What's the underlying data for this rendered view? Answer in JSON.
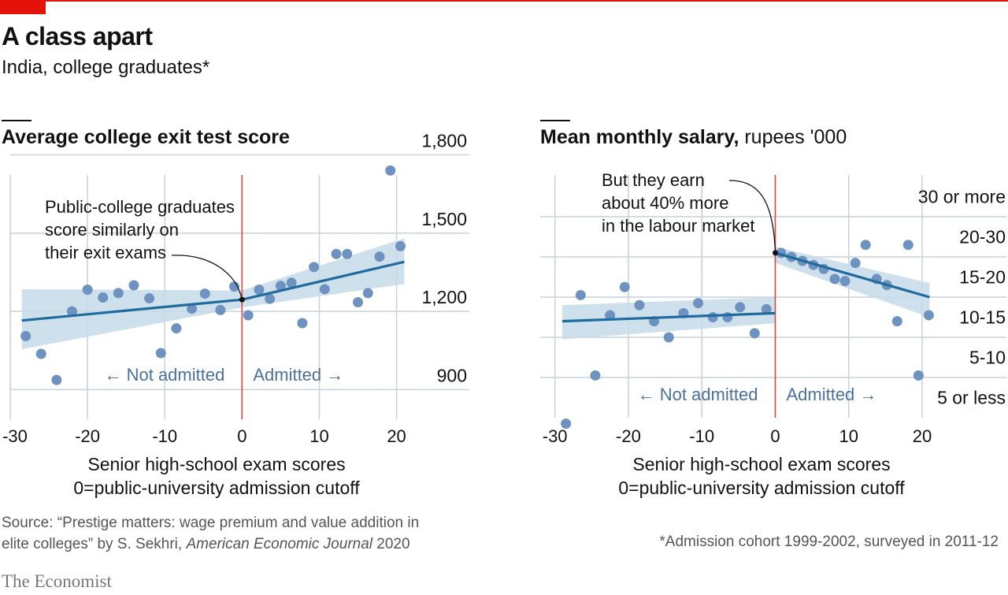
{
  "header": {
    "title": "A class apart",
    "subtitle": "India, college graduates*"
  },
  "colors": {
    "accent": "#e3120b",
    "line": "#1f6b9e",
    "band": "#c5dbe8",
    "dots": "#6f93c0",
    "grid": "#c7d2db",
    "cutoff": "#d64541"
  },
  "chart_data": [
    {
      "type": "scatter",
      "title": "Average college exit test score",
      "ylabel": "",
      "xlabel": "Senior high-school exam scores",
      "xlabel_sub": "0=public-university admission cutoff",
      "xlim": [
        -30,
        23
      ],
      "ylim": [
        750,
        1850
      ],
      "x_ticks": [
        -30,
        -20,
        -10,
        0,
        10,
        20
      ],
      "x_tick_labels": [
        "-30",
        "-20",
        "-10",
        "0",
        "10",
        "20"
      ],
      "y_ticks": [
        900,
        1200,
        1500,
        1800
      ],
      "y_tick_labels": [
        "900",
        "1,200",
        "1,500",
        "1,800"
      ],
      "cutoff_x": 0,
      "annotation": "Public-college graduates score similarly on their exit exams",
      "annotation_lines": [
        "Public-college graduates",
        "score similarly on",
        "their exit exams"
      ],
      "left_label": "← Not admitted",
      "right_label": "Admitted →",
      "points": [
        [
          -28,
          1105
        ],
        [
          -26,
          1037
        ],
        [
          -24,
          937
        ],
        [
          -22,
          1200
        ],
        [
          -20,
          1283
        ],
        [
          -18,
          1253
        ],
        [
          -16,
          1270
        ],
        [
          -14,
          1300
        ],
        [
          -12,
          1250
        ],
        [
          -10.5,
          1040
        ],
        [
          -8.5,
          1135
        ],
        [
          -6.5,
          1210
        ],
        [
          -4.8,
          1268
        ],
        [
          -2.8,
          1205
        ],
        [
          -1,
          1295
        ],
        [
          0.8,
          1185
        ],
        [
          2.2,
          1283
        ],
        [
          3.6,
          1248
        ],
        [
          5,
          1298
        ],
        [
          6.4,
          1310
        ],
        [
          7.8,
          1155
        ],
        [
          9.3,
          1370
        ],
        [
          10.7,
          1285
        ],
        [
          12.2,
          1420
        ],
        [
          13.6,
          1420
        ],
        [
          15,
          1235
        ],
        [
          16.3,
          1270
        ],
        [
          17.8,
          1410
        ],
        [
          19.2,
          1740
        ],
        [
          20.5,
          1450
        ]
      ],
      "fit_left": {
        "x": [
          -28.5,
          0
        ],
        "y": [
          1165,
          1245
        ]
      },
      "fit_right": {
        "x": [
          0,
          21
        ],
        "y": [
          1245,
          1390
        ]
      },
      "band_left": {
        "x": [
          -28.5,
          0
        ],
        "upper": [
          1285,
          1280
        ],
        "lower": [
          1055,
          1215
        ]
      },
      "band_right": {
        "x": [
          0,
          21
        ],
        "upper": [
          1280,
          1480
        ],
        "lower": [
          1215,
          1305
        ]
      }
    },
    {
      "type": "scatter",
      "title": "Mean monthly salary,",
      "unit": "rupees '000",
      "xlabel": "Senior high-school exam scores",
      "xlabel_sub": "0=public-university admission cutoff",
      "xlim": [
        -32,
        23
      ],
      "ylim": [
        0,
        6
      ],
      "x_ticks": [
        -30,
        -20,
        -10,
        0,
        10,
        20
      ],
      "x_tick_labels": [
        "-30",
        "-20",
        "-10",
        "0",
        "10",
        "20"
      ],
      "bands": [
        "5 or less",
        "5-10",
        "10-15",
        "15-20",
        "20-30",
        "30 or more"
      ],
      "cutoff_x": 0,
      "annotation": "But they earn about 40% more in the labour market",
      "annotation_lines": [
        "But they earn",
        "about 40% more",
        "in the labour market"
      ],
      "left_label": "← Not admitted",
      "right_label": "Admitted →",
      "points": [
        [
          -28.5,
          -0.15
        ],
        [
          -26.5,
          3.05
        ],
        [
          -24.5,
          1.05
        ],
        [
          -22.5,
          2.55
        ],
        [
          -20.5,
          3.25
        ],
        [
          -18.5,
          2.8
        ],
        [
          -16.5,
          2.4
        ],
        [
          -14.5,
          2.0
        ],
        [
          -12.5,
          2.6
        ],
        [
          -10.5,
          2.85
        ],
        [
          -8.5,
          2.5
        ],
        [
          -6.5,
          2.5
        ],
        [
          -4.8,
          2.75
        ],
        [
          -2.8,
          2.1
        ],
        [
          -1.2,
          2.7
        ],
        [
          0.8,
          4.1
        ],
        [
          2.2,
          4.0
        ],
        [
          3.7,
          3.9
        ],
        [
          5.2,
          3.8
        ],
        [
          6.6,
          3.7
        ],
        [
          8.1,
          3.45
        ],
        [
          9.5,
          3.4
        ],
        [
          10.9,
          3.85
        ],
        [
          12.3,
          4.3
        ],
        [
          13.8,
          3.45
        ],
        [
          15.2,
          3.3
        ],
        [
          16.6,
          2.4
        ],
        [
          18.1,
          4.3
        ],
        [
          19.5,
          1.05
        ],
        [
          20.9,
          2.55
        ]
      ],
      "fit_left": {
        "x": [
          -29,
          0
        ],
        "y": [
          2.4,
          2.6
        ]
      },
      "fit_right": {
        "x": [
          0,
          21
        ],
        "y": [
          4.1,
          3.0
        ]
      },
      "band_left": {
        "x": [
          -29,
          0
        ],
        "upper": [
          2.8,
          3.0
        ],
        "lower": [
          1.95,
          2.35
        ]
      },
      "band_right": {
        "x": [
          0,
          21
        ],
        "upper": [
          4.25,
          3.35
        ],
        "lower": [
          3.85,
          2.5
        ]
      }
    }
  ],
  "source": {
    "prefix": "Source: “Prestige matters: wage premium and value addition in elite colleges” by S. Sekhri, ",
    "journal": "American Economic Journal",
    "year": " 2020"
  },
  "footnote": "*Admission cohort 1999-2002, surveyed in 2011-12",
  "brand": "The Economist"
}
